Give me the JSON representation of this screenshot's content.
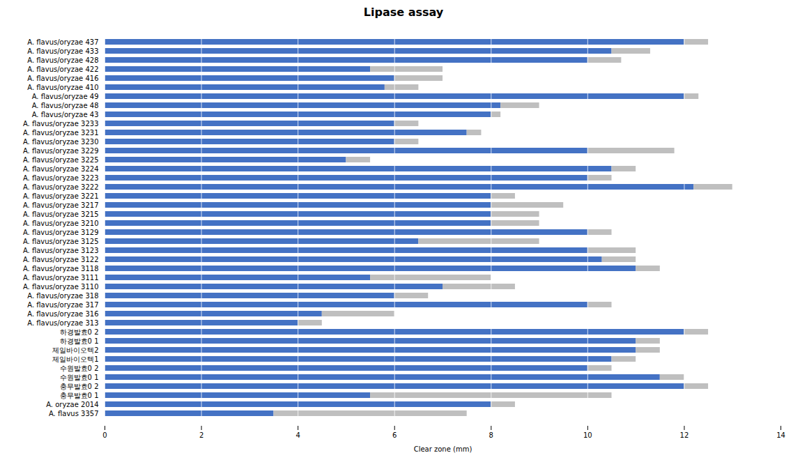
{
  "chart_data": {
    "type": "bar",
    "orientation": "horizontal",
    "stacked": true,
    "grid": true,
    "title": "Lipase assay",
    "xlabel": "Clear zone (mm)",
    "xlim": [
      0,
      14
    ],
    "xticks": [
      0,
      2,
      4,
      6,
      8,
      10,
      12,
      14
    ],
    "categories": [
      "A. flavus/oryzae 437",
      "A. flavus/oryzae 433",
      "A. flavus/oryzae 428",
      "A. flavus/oryzae 422",
      "A. flavus/oryzae 416",
      "A. flavus/oryzae 410",
      "A. flavus/oryzae 49",
      "A. flavus/oryzae 48",
      "A. flavus/oryzae 43",
      "A. flavus/oryzae 3233",
      "A. flavus/oryzae 3231",
      "A. flavus/oryzae 3230",
      "A. flavus/oryzae 3229",
      "A. flavus/oryzae 3225",
      "A. flavus/oryzae 3224",
      "A. flavus/oryzae 3223",
      "A. flavus/oryzae 3222",
      "A. flavus/oryzae 3221",
      "A. flavus/oryzae 3217",
      "A. flavus/oryzae 3215",
      "A. flavus/oryzae 3210",
      "A. flavus/oryzae 3129",
      "A. flavus/oryzae 3125",
      "A. flavus/oryzae 3123",
      "A. flavus/oryzae 3122",
      "A. flavus/oryzae 3118",
      "A. flavus/oryzae 3111",
      "A. flavus/oryzae 3110",
      "A. flavus/oryzae 318",
      "A. flavus/oryzae 317",
      "A. flavus/oryzae 316",
      "A. flavus/oryzae 313",
      "하경발효0 2",
      "하경발효0 1",
      "제일바이오텍2",
      "제일바이오텍1",
      "수원발효0 2",
      "수원발효0 1",
      "충무발효0 2",
      "충무발효0 1",
      "A. oryzae 2014",
      "A. flavus 3357"
    ],
    "series": [
      {
        "color": "#4472C4",
        "values": [
          12.0,
          10.5,
          10.0,
          5.5,
          6.0,
          5.8,
          12.0,
          8.2,
          8.0,
          6.0,
          7.5,
          6.0,
          10.0,
          5.0,
          10.5,
          10.0,
          12.2,
          8.0,
          8.0,
          8.0,
          8.0,
          10.0,
          6.5,
          10.0,
          10.3,
          11.0,
          5.5,
          7.0,
          6.0,
          10.0,
          4.5,
          4.0,
          12.0,
          11.0,
          11.0,
          10.5,
          10.0,
          11.5,
          12.0,
          5.5,
          8.0,
          3.5
        ]
      },
      {
        "color": "#BFBFBF",
        "values": [
          0.5,
          0.8,
          0.7,
          1.5,
          1.0,
          0.7,
          0.3,
          0.8,
          0.2,
          0.5,
          0.3,
          0.5,
          1.8,
          0.5,
          0.5,
          0.5,
          0.8,
          0.5,
          1.5,
          1.0,
          1.0,
          0.5,
          2.5,
          1.0,
          0.7,
          0.5,
          2.5,
          1.5,
          0.7,
          0.5,
          1.5,
          0.5,
          0.5,
          0.5,
          0.5,
          0.5,
          0.5,
          0.5,
          0.5,
          5.0,
          0.5,
          4.0
        ]
      }
    ]
  }
}
